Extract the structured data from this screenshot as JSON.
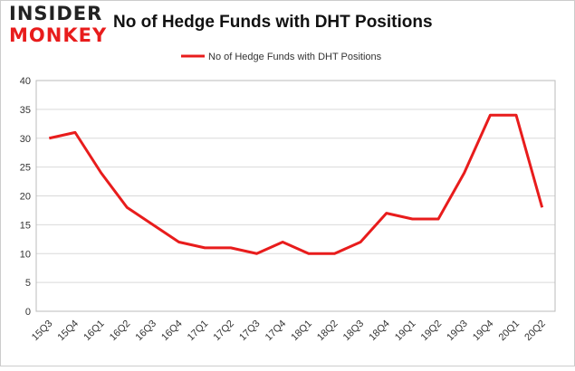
{
  "logo": {
    "top": "INSIDER",
    "bottom": "MONKEY"
  },
  "chart_data": {
    "type": "line",
    "title": "No of Hedge Funds with DHT Positions",
    "categories": [
      "15Q3",
      "15Q4",
      "16Q1",
      "16Q2",
      "16Q3",
      "16Q4",
      "17Q1",
      "17Q2",
      "17Q3",
      "17Q4",
      "18Q1",
      "18Q2",
      "18Q3",
      "18Q4",
      "19Q1",
      "19Q2",
      "19Q3",
      "19Q4",
      "20Q1",
      "20Q2"
    ],
    "series": [
      {
        "name": "No of Hedge Funds with DHT Positions",
        "color": "#e81c1c",
        "values": [
          30,
          31,
          24,
          18,
          15,
          12,
          11,
          11,
          10,
          12,
          10,
          10,
          12,
          17,
          16,
          16,
          24,
          34,
          34,
          18
        ]
      }
    ],
    "ylim": [
      0,
      40
    ],
    "yticks": [
      0,
      5,
      10,
      15,
      20,
      25,
      30,
      35,
      40
    ],
    "grid": true,
    "legend": "top"
  }
}
